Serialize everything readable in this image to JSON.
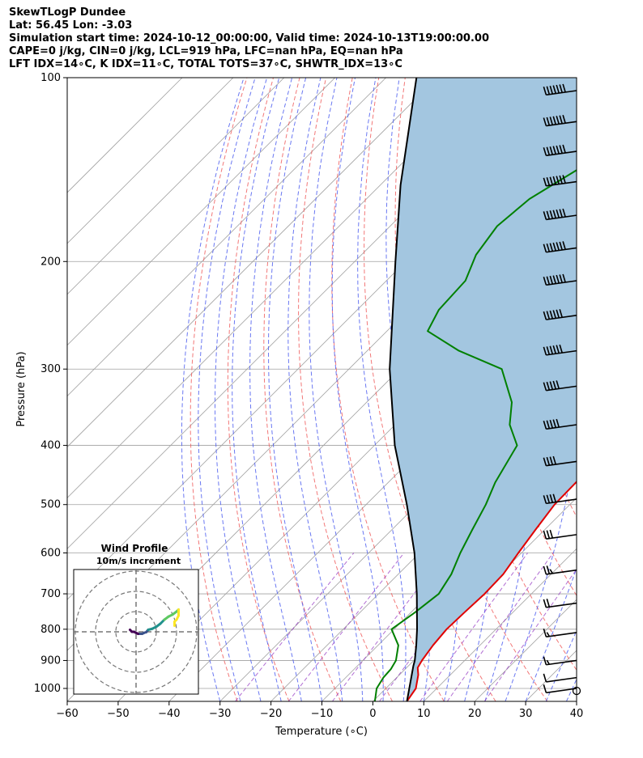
{
  "header": {
    "title": "SkewTLogP Dundee",
    "location": "Lat: 56.45   Lon: -3.03",
    "times": "Simulation start time: 2024-10-12_00:00:00, Valid time: 2024-10-13T19:00:00.00",
    "params": "CAPE=0 j/kg, CIN=0 j/kg, LCL=919 hPa, LFC=nan hPa, EQ=nan hPa",
    "indices": "LFT IDX=14∘C, K IDX=11∘C, TOTAL TOTS=37∘C, SHWTR_IDX=13∘C"
  },
  "chart_data": [
    {
      "type": "line",
      "subtype": "skew-t log-p",
      "xlabel": "Temperature (∘C)",
      "ylabel": "Pressure (hPa)",
      "xlim": [
        -60,
        40
      ],
      "ylim": [
        1050,
        100
      ],
      "y_scale": "log",
      "x_ticks": [
        "−60",
        "−50",
        "−40",
        "−30",
        "−20",
        "−10",
        "0",
        "10",
        "20",
        "30",
        "40"
      ],
      "y_ticks": [
        "100",
        "200",
        "300",
        "400",
        "500",
        "600",
        "700",
        "800",
        "900",
        "1000"
      ],
      "grid": true,
      "colors": {
        "temperature": "#e00000",
        "dewpoint": "#008000",
        "parcel": "#000000",
        "shading": "#a3c6e0",
        "dry_adiabat": "#f06060",
        "moist_adiabat": "#5060f0",
        "mixing_ratio": "#9030c0",
        "isotherm": "#a0a0a0"
      },
      "series": [
        {
          "key": "temperature",
          "points": [
            [
              1050,
              6.7
            ],
            [
              1000,
              5.9
            ],
            [
              950,
              3.7
            ],
            [
              925,
              2.2
            ],
            [
              900,
              1.6
            ],
            [
              850,
              0.8
            ],
            [
              800,
              0.3
            ],
            [
              750,
              0.5
            ],
            [
              700,
              0.8
            ],
            [
              650,
              0.6
            ],
            [
              600,
              -0.6
            ],
            [
              550,
              -1.8
            ],
            [
              500,
              -3.0
            ],
            [
              450,
              -3.2
            ],
            [
              400,
              -3.8
            ],
            [
              370,
              -5.8
            ],
            [
              330,
              -9.3
            ],
            [
              300,
              -12.0
            ],
            [
              280,
              -13.2
            ],
            [
              250,
              -13.2
            ],
            [
              220,
              -12.5
            ],
            [
              200,
              -11.5
            ],
            [
              180,
              -10.0
            ],
            [
              165,
              -8.3
            ],
            [
              150,
              -7.9
            ],
            [
              135,
              -7.5
            ],
            [
              120,
              -6.4
            ],
            [
              110,
              -6.2
            ],
            [
              100,
              -6.2
            ]
          ]
        },
        {
          "key": "dewpoint",
          "points": [
            [
              1050,
              0.4
            ],
            [
              1000,
              -1.8
            ],
            [
              960,
              -2.6
            ],
            [
              930,
              -2.8
            ],
            [
              900,
              -3.5
            ],
            [
              850,
              -6.0
            ],
            [
              800,
              -10.5
            ],
            [
              750,
              -9.2
            ],
            [
              700,
              -8.2
            ],
            [
              650,
              -9.6
            ],
            [
              600,
              -12.0
            ],
            [
              550,
              -14.2
            ],
            [
              500,
              -16.5
            ],
            [
              460,
              -19.0
            ],
            [
              400,
              -22.0
            ],
            [
              370,
              -27.5
            ],
            [
              340,
              -31.5
            ],
            [
              300,
              -40.0
            ],
            [
              280,
              -52.0
            ],
            [
              260,
              -62.0
            ],
            [
              240,
              -64.0
            ],
            [
              215,
              -64.5
            ],
            [
              195,
              -67.5
            ],
            [
              175,
              -69.0
            ],
            [
              158,
              -68.0
            ],
            [
              140,
              -64.0
            ],
            [
              120,
              -58.0
            ],
            [
              100,
              -50.0
            ]
          ]
        },
        {
          "key": "parcel",
          "points": [
            [
              1050,
              6.7
            ],
            [
              919,
              1.0
            ],
            [
              900,
              0.2
            ],
            [
              850,
              -2.5
            ],
            [
              800,
              -5.5
            ],
            [
              700,
              -12.5
            ],
            [
              600,
              -21.0
            ],
            [
              500,
              -32.0
            ],
            [
              400,
              -46.0
            ],
            [
              300,
              -62.0
            ],
            [
              200,
              -82.0
            ],
            [
              150,
              -96.0
            ],
            [
              100,
              -114.0
            ]
          ]
        }
      ],
      "wind_barbs": [
        {
          "p": 105,
          "kt": 70
        },
        {
          "p": 118,
          "kt": 70
        },
        {
          "p": 132,
          "kt": 70
        },
        {
          "p": 148,
          "kt": 70
        },
        {
          "p": 168,
          "kt": 70
        },
        {
          "p": 190,
          "kt": 70
        },
        {
          "p": 215,
          "kt": 70
        },
        {
          "p": 245,
          "kt": 60
        },
        {
          "p": 280,
          "kt": 60
        },
        {
          "p": 320,
          "kt": 50
        },
        {
          "p": 370,
          "kt": 50
        },
        {
          "p": 425,
          "kt": 40
        },
        {
          "p": 490,
          "kt": 40
        },
        {
          "p": 560,
          "kt": 30
        },
        {
          "p": 640,
          "kt": 25
        },
        {
          "p": 725,
          "kt": 20
        },
        {
          "p": 810,
          "kt": 15
        },
        {
          "p": 900,
          "kt": 15
        },
        {
          "p": 960,
          "kt": 10
        },
        {
          "p": 1000,
          "kt": 10
        }
      ],
      "calm_marker_pressure": 1050
    },
    {
      "type": "line",
      "subtype": "hodograph",
      "title": "Wind Profile",
      "subtitle": "10m/s increment",
      "ring_increment_ms": 10,
      "rings": 3,
      "trace_uv": [
        [
          -3,
          1
        ],
        [
          -2,
          0
        ],
        [
          -1,
          0
        ],
        [
          0,
          -0.5
        ],
        [
          1,
          -1
        ],
        [
          2,
          -1
        ],
        [
          3,
          -1
        ],
        [
          4,
          -0.5
        ],
        [
          5,
          -0.2
        ],
        [
          6,
          1
        ],
        [
          8,
          1.5
        ],
        [
          10,
          2.5
        ],
        [
          12,
          4
        ],
        [
          14,
          6
        ],
        [
          16,
          7.5
        ],
        [
          18,
          8.5
        ],
        [
          20,
          10
        ],
        [
          21,
          11
        ],
        [
          21,
          8
        ],
        [
          20,
          6
        ],
        [
          19,
          5
        ],
        [
          19,
          3
        ]
      ],
      "colors": [
        "#440154",
        "#3b528b",
        "#21918c",
        "#5ec962",
        "#fde725"
      ]
    }
  ]
}
